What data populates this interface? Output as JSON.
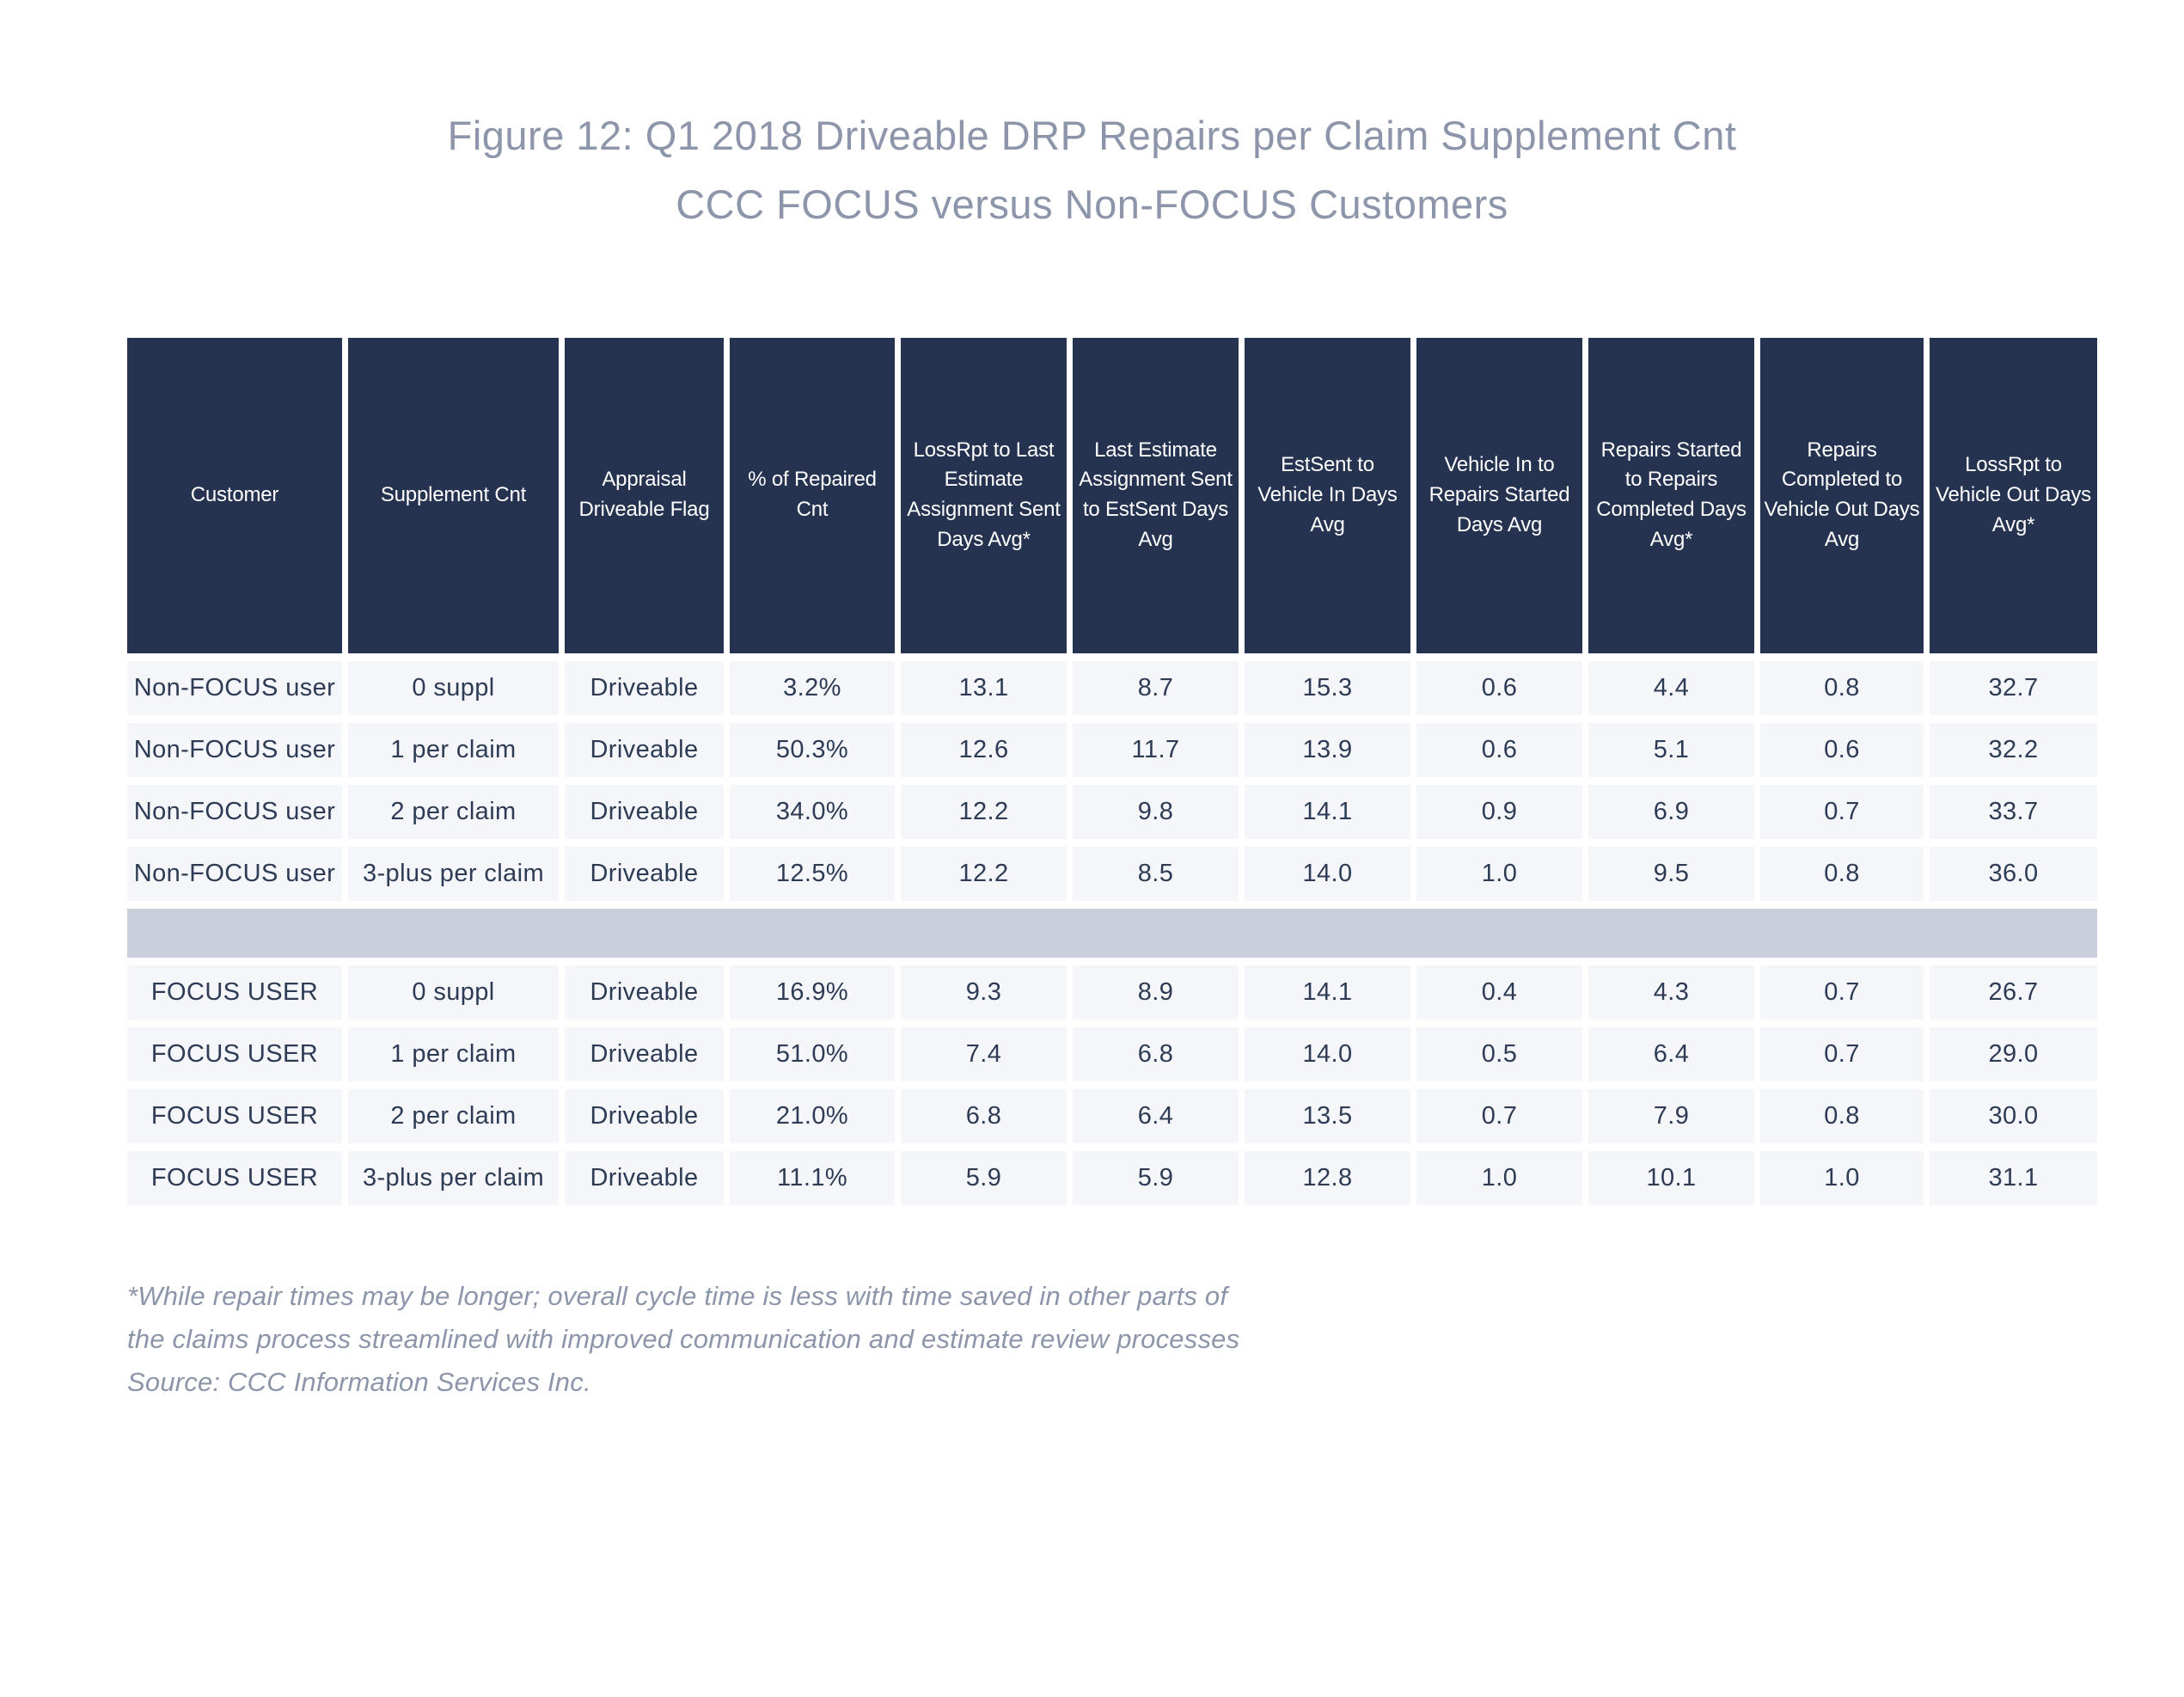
{
  "title": {
    "line1": "Figure 12: Q1 2018 Driveable DRP Repairs per Claim Supplement Cnt",
    "line2": "CCC FOCUS versus Non-FOCUS Customers"
  },
  "chart_data": {
    "type": "table",
    "title": "Figure 12: Q1 2018 Driveable DRP Repairs per Claim Supplement Cnt — CCC FOCUS versus Non-FOCUS Customers",
    "columns": [
      "Customer",
      "Supplement Cnt",
      "Appraisal Driveable Flag",
      "% of Repaired Cnt",
      "LossRpt to Last Estimate Assignment Sent Days Avg*",
      "Last Estimate Assignment Sent to EstSent Days Avg",
      "EstSent to Vehicle In Days Avg",
      "Vehicle In to Repairs Started Days Avg",
      "Repairs Started to Repairs Completed Days Avg*",
      "Repairs Completed to Vehicle Out Days Avg",
      "LossRpt to Vehicle Out Days Avg*"
    ],
    "groups": [
      {
        "name": "Non-FOCUS users",
        "rows": [
          [
            "Non-FOCUS user",
            "0 suppl",
            "Driveable",
            "3.2%",
            "13.1",
            "8.7",
            "15.3",
            "0.6",
            "4.4",
            "0.8",
            "32.7"
          ],
          [
            "Non-FOCUS user",
            "1 per claim",
            "Driveable",
            "50.3%",
            "12.6",
            "11.7",
            "13.9",
            "0.6",
            "5.1",
            "0.6",
            "32.2"
          ],
          [
            "Non-FOCUS user",
            "2 per claim",
            "Driveable",
            "34.0%",
            "12.2",
            "9.8",
            "14.1",
            "0.9",
            "6.9",
            "0.7",
            "33.7"
          ],
          [
            "Non-FOCUS user",
            "3-plus per claim",
            "Driveable",
            "12.5%",
            "12.2",
            "8.5",
            "14.0",
            "1.0",
            "9.5",
            "0.8",
            "36.0"
          ]
        ]
      },
      {
        "name": "FOCUS users",
        "rows": [
          [
            "FOCUS USER",
            "0 suppl",
            "Driveable",
            "16.9%",
            "9.3",
            "8.9",
            "14.1",
            "0.4",
            "4.3",
            "0.7",
            "26.7"
          ],
          [
            "FOCUS USER",
            "1 per claim",
            "Driveable",
            "51.0%",
            "7.4",
            "6.8",
            "14.0",
            "0.5",
            "6.4",
            "0.7",
            "29.0"
          ],
          [
            "FOCUS USER",
            "2 per claim",
            "Driveable",
            "21.0%",
            "6.8",
            "6.4",
            "13.5",
            "0.7",
            "7.9",
            "0.8",
            "30.0"
          ],
          [
            "FOCUS USER",
            "3-plus per claim",
            "Driveable",
            "11.1%",
            "5.9",
            "5.9",
            "12.8",
            "1.0",
            "10.1",
            "1.0",
            "31.1"
          ]
        ]
      }
    ],
    "layout_hints": {
      "header_background": "#253351",
      "row_background": "#f4f6fa",
      "group_separator_background": "#c9cfdb",
      "grid": "white gaps between cells",
      "alignment": "all cells centered"
    }
  },
  "footnote": {
    "line1": "*While repair times may be longer; overall cycle time is less with time saved in other parts of",
    "line2": "the claims process streamlined with improved communication and estimate review processes",
    "line3": "Source: CCC Information Services Inc."
  },
  "colors": {
    "header_bg": "#253351",
    "header_text": "#ffffff",
    "row_bg": "#f4f6fa",
    "separator_bg": "#c9cfdb",
    "cell_text": "#2e3b55",
    "title_text": "#8c95a9",
    "footnote_text": "#8c95a9",
    "page_bg": "#ffffff"
  }
}
